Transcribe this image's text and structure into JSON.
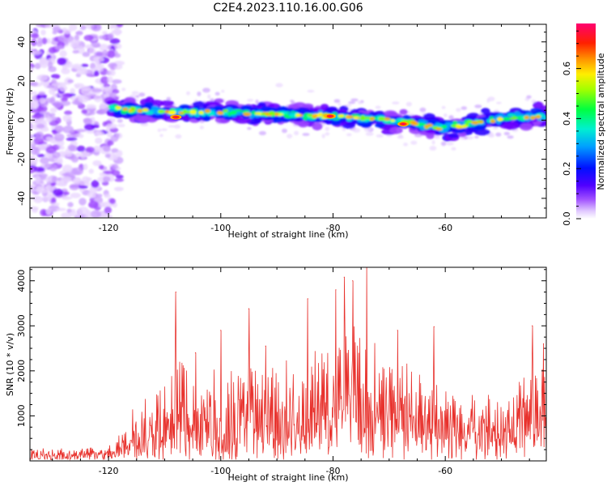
{
  "figure": {
    "title": "C2E4.2023.110.16.00.G06"
  },
  "chart_data": [
    {
      "type": "heatmap",
      "xlabel": "Height of straight line (km)",
      "ylabel": "Frequency (Hz)",
      "xlim": [
        -134,
        -42
      ],
      "ylim": [
        -50,
        49
      ],
      "xticks": [
        -120,
        -100,
        -80,
        -60
      ],
      "yticks": [
        -40,
        -20,
        0,
        20,
        40
      ],
      "colorbar": {
        "label": "Normalized spectral amplitude",
        "range": [
          0,
          0.78
        ],
        "ticks": [
          0.0,
          0.2,
          0.4,
          0.6
        ],
        "colormap": "rainbow: white, violet, blue, cyan, green, yellow, orange, red, magenta"
      },
      "colors": [
        "#ffffff",
        "#e8d4ff",
        "#c89cff",
        "#9a40ff",
        "#6a00ff",
        "#2a00ff",
        "#0020ff",
        "#00a8ff",
        "#00f0d0",
        "#00ff60",
        "#80ff00",
        "#ffff00",
        "#ffb000",
        "#ff4000",
        "#ff0060",
        "#ff0090"
      ],
      "ridge_frequency_hz": [
        [
          -119,
          6
        ],
        [
          -110,
          4
        ],
        [
          -100,
          4
        ],
        [
          -90,
          3
        ],
        [
          -80,
          2
        ],
        [
          -70,
          0
        ],
        [
          -60,
          -4
        ],
        [
          -50,
          1
        ],
        [
          -42,
          2
        ]
      ],
      "peak_amplitude_locations": [
        [
          -108,
          1.5
        ],
        [
          -80.5,
          2
        ],
        [
          -67.5,
          -2
        ]
      ]
    },
    {
      "type": "line",
      "xlabel": "Height of straight line (km)",
      "ylabel": "SNR (10 * v/v)",
      "xlim": [
        -134,
        -42
      ],
      "ylim": [
        0,
        4300
      ],
      "xticks": [
        -120,
        -100,
        -80,
        -60
      ],
      "yticks": [
        1000,
        2000,
        3000,
        4000
      ],
      "series": [
        {
          "color": "#e8322d",
          "envelope_points": [
            [
              -134,
              300
            ],
            [
              -126,
              280
            ],
            [
              -122,
              300
            ],
            [
              -119,
              380
            ],
            [
              -117,
              900
            ],
            [
              -115,
              1300
            ],
            [
              -112,
              1500
            ],
            [
              -110,
              1800
            ],
            [
              -108,
              2400
            ],
            [
              -104,
              1900
            ],
            [
              -100,
              2100
            ],
            [
              -96,
              2200
            ],
            [
              -92,
              2000
            ],
            [
              -88,
              2300
            ],
            [
              -84,
              2400
            ],
            [
              -80,
              2800
            ],
            [
              -77,
              3100
            ],
            [
              -74,
              2900
            ],
            [
              -70,
              2200
            ],
            [
              -67,
              2300
            ],
            [
              -64,
              1900
            ],
            [
              -60,
              1700
            ],
            [
              -56,
              1600
            ],
            [
              -52,
              1500
            ],
            [
              -48,
              1600
            ],
            [
              -45,
              2200
            ],
            [
              -42,
              2000
            ]
          ],
          "peaks": [
            [
              -108,
              3750
            ],
            [
              -104.5,
              2400
            ],
            [
              -100,
              2900
            ],
            [
              -95,
              3380
            ],
            [
              -92,
              2550
            ],
            [
              -84.5,
              3600
            ],
            [
              -79.5,
              3800
            ],
            [
              -78,
              4080
            ],
            [
              -76.5,
              4000
            ],
            [
              -74,
              4300
            ],
            [
              -68.5,
              2900
            ],
            [
              -62,
              2980
            ],
            [
              -44.5,
              3000
            ],
            [
              -42.5,
              2600
            ]
          ]
        }
      ]
    }
  ]
}
